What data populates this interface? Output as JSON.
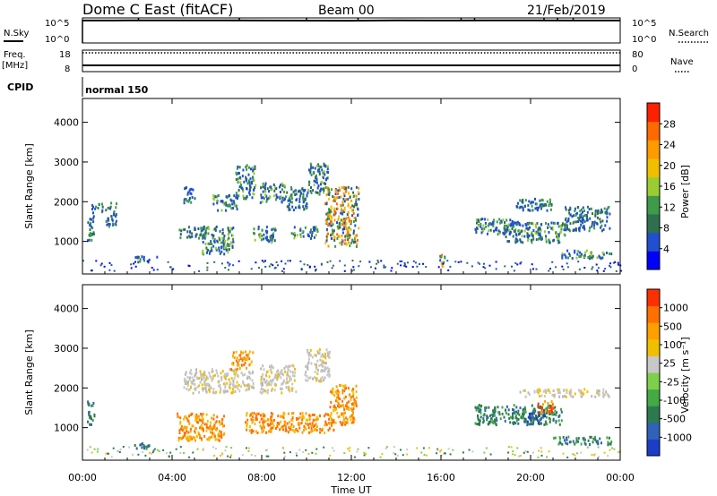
{
  "header": {
    "title": "Dome C East (fitACF)",
    "beam": "Beam 00",
    "date": "21/Feb/2019"
  },
  "chart_data": [
    {
      "type": "line",
      "name": "nsky-nsearch-panel",
      "left_label": "N.Sky",
      "right_label": "N.Search",
      "left_ticks": [
        "10^5",
        "10^0"
      ],
      "right_ticks": [
        "10^5",
        "10^0"
      ],
      "series": [
        {
          "name": "N.Sky",
          "style": "solid",
          "x": [
            0,
            2,
            4,
            6,
            8,
            10,
            12,
            14,
            16,
            18,
            20,
            22,
            24
          ],
          "y": [
            30000,
            32000,
            31000,
            33000,
            30000,
            29000,
            28000,
            31000,
            30000,
            32000,
            31000,
            30000,
            30000
          ]
        },
        {
          "name": "N.Search",
          "style": "dotted",
          "x": [
            0,
            24
          ],
          "y": [
            30000,
            30000
          ]
        }
      ],
      "spikes": [
        2.5,
        7.0,
        10.0,
        12.3,
        16.9,
        17.5,
        20.6,
        21.2,
        21.9
      ]
    },
    {
      "type": "line",
      "name": "freq-nave-panel",
      "left_label": "Freq.",
      "left_unit": "[MHz]",
      "right_label": "Nave",
      "left_ticks": [
        "18",
        "8"
      ],
      "right_ticks": [
        "80",
        "0"
      ],
      "ylim_left": [
        8,
        18
      ],
      "ylim_right": [
        0,
        80
      ],
      "series": [
        {
          "name": "Freq.",
          "style": "solid",
          "x": [
            0,
            24
          ],
          "y": [
            10.3,
            10.3
          ]
        },
        {
          "name": "Nave",
          "style": "dotted",
          "x": [
            0,
            24
          ],
          "y": [
            78,
            78
          ]
        }
      ]
    },
    {
      "type": "table",
      "name": "cpid-row",
      "label": "CPID",
      "text": "normal 150",
      "start": 0
    },
    {
      "type": "heatmap",
      "name": "power-panel",
      "ylabel": "Slant Range [km]",
      "yticks": [
        1000,
        2000,
        3000,
        4000
      ],
      "ylim": [
        180,
        4600
      ],
      "xlim": [
        0,
        24
      ],
      "colorbar": {
        "label": "Power [dB]",
        "ticks": [
          "4",
          "8",
          "12",
          "16",
          "20",
          "24",
          "28"
        ],
        "colors": [
          "#0000ff",
          "#2050d0",
          "#2e6f4f",
          "#3d9b4a",
          "#9acd32",
          "#f0c000",
          "#ff9a00",
          "#ff6a00",
          "#ff2000"
        ]
      },
      "regions": [
        {
          "x": [
            0.2,
            0.5
          ],
          "y": [
            1000,
            1700
          ],
          "level": "low"
        },
        {
          "x": [
            0.4,
            0.9
          ],
          "y": [
            1750,
            2000
          ],
          "level": "low"
        },
        {
          "x": [
            1.0,
            1.5
          ],
          "y": [
            1400,
            2000
          ],
          "level": "low"
        },
        {
          "x": [
            2.3,
            3.3
          ],
          "y": [
            500,
            650
          ],
          "level": "low"
        },
        {
          "x": [
            4.2,
            5.5
          ],
          "y": [
            1100,
            1400
          ],
          "level": "low"
        },
        {
          "x": [
            4.5,
            5.0
          ],
          "y": [
            2000,
            2400
          ],
          "level": "low"
        },
        {
          "x": [
            5.3,
            6.7
          ],
          "y": [
            700,
            1400
          ],
          "level": "mid"
        },
        {
          "x": [
            5.8,
            6.9
          ],
          "y": [
            1800,
            2200
          ],
          "level": "mid"
        },
        {
          "x": [
            6.8,
            7.7
          ],
          "y": [
            2100,
            2950
          ],
          "level": "mid"
        },
        {
          "x": [
            7.6,
            8.6
          ],
          "y": [
            1000,
            1400
          ],
          "level": "mid"
        },
        {
          "x": [
            7.9,
            9.0
          ],
          "y": [
            2000,
            2500
          ],
          "level": "mid"
        },
        {
          "x": [
            9.0,
            10.0
          ],
          "y": [
            1800,
            2400
          ],
          "level": "low"
        },
        {
          "x": [
            9.3,
            10.5
          ],
          "y": [
            1100,
            1400
          ],
          "level": "mid"
        },
        {
          "x": [
            10.0,
            11.0
          ],
          "y": [
            2200,
            3000
          ],
          "level": "mid"
        },
        {
          "x": [
            10.8,
            12.3
          ],
          "y": [
            900,
            2400
          ],
          "level": "high"
        },
        {
          "x": [
            15.9,
            16.2
          ],
          "y": [
            400,
            700
          ],
          "level": "high"
        },
        {
          "x": [
            17.5,
            19.5
          ],
          "y": [
            1200,
            1600
          ],
          "level": "mid"
        },
        {
          "x": [
            18.8,
            21.5
          ],
          "y": [
            1000,
            1500
          ],
          "level": "mid"
        },
        {
          "x": [
            19.3,
            21.0
          ],
          "y": [
            1800,
            2100
          ],
          "level": "low"
        },
        {
          "x": [
            21.5,
            23.5
          ],
          "y": [
            1300,
            1900
          ],
          "level": "low"
        },
        {
          "x": [
            21.3,
            22.8
          ],
          "y": [
            600,
            800
          ],
          "level": "mid"
        },
        {
          "x": [
            22.5,
            23.6
          ],
          "y": [
            600,
            750
          ],
          "level": "mid"
        }
      ]
    },
    {
      "type": "heatmap",
      "name": "velocity-panel",
      "ylabel": "Slant Range [km]",
      "yticks": [
        1000,
        2000,
        3000,
        4000
      ],
      "ylim": [
        180,
        4600
      ],
      "xlim": [
        0,
        24
      ],
      "xticks": [
        "00:00",
        "04:00",
        "08:00",
        "12:00",
        "16:00",
        "20:00",
        "00:00"
      ],
      "xlabel": "Time UT",
      "colorbar": {
        "label": "Velocity [m s⁻¹]",
        "ticks": [
          "1000",
          "500",
          "100",
          "25",
          "-25",
          "-100",
          "-500",
          "-1000"
        ],
        "colors": [
          "#1a3ec8",
          "#2f62b8",
          "#2e7a50",
          "#44aa44",
          "#7ed04a",
          "#c8c8c8",
          "#f0c000",
          "#ffa000",
          "#ff7000",
          "#ff3000"
        ]
      },
      "regions": [
        {
          "x": [
            0.2,
            0.5
          ],
          "y": [
            1000,
            1700
          ],
          "level": "away"
        },
        {
          "x": [
            2.3,
            3.3
          ],
          "y": [
            500,
            650
          ],
          "level": "away"
        },
        {
          "x": [
            4.2,
            6.3
          ],
          "y": [
            700,
            1400
          ],
          "level": "toward"
        },
        {
          "x": [
            4.5,
            7.6
          ],
          "y": [
            1900,
            2500
          ],
          "level": "grey"
        },
        {
          "x": [
            6.6,
            7.6
          ],
          "y": [
            2500,
            2950
          ],
          "level": "toward"
        },
        {
          "x": [
            7.2,
            11.2
          ],
          "y": [
            900,
            1400
          ],
          "level": "toward"
        },
        {
          "x": [
            7.9,
            9.5
          ],
          "y": [
            1900,
            2600
          ],
          "level": "grey"
        },
        {
          "x": [
            9.9,
            11.0
          ],
          "y": [
            2200,
            3000
          ],
          "level": "grey"
        },
        {
          "x": [
            11.0,
            12.2
          ],
          "y": [
            1100,
            2100
          ],
          "level": "toward"
        },
        {
          "x": [
            17.5,
            21.4
          ],
          "y": [
            1100,
            1600
          ],
          "level": "away"
        },
        {
          "x": [
            19.8,
            20.6
          ],
          "y": [
            1100,
            1400
          ],
          "level": "approach"
        },
        {
          "x": [
            20.3,
            21.0
          ],
          "y": [
            1400,
            1700
          ],
          "level": "strong"
        },
        {
          "x": [
            21.0,
            23.6
          ],
          "y": [
            600,
            800
          ],
          "level": "away"
        },
        {
          "x": [
            19.5,
            23.5
          ],
          "y": [
            1800,
            2000
          ],
          "level": "grey"
        }
      ]
    }
  ]
}
